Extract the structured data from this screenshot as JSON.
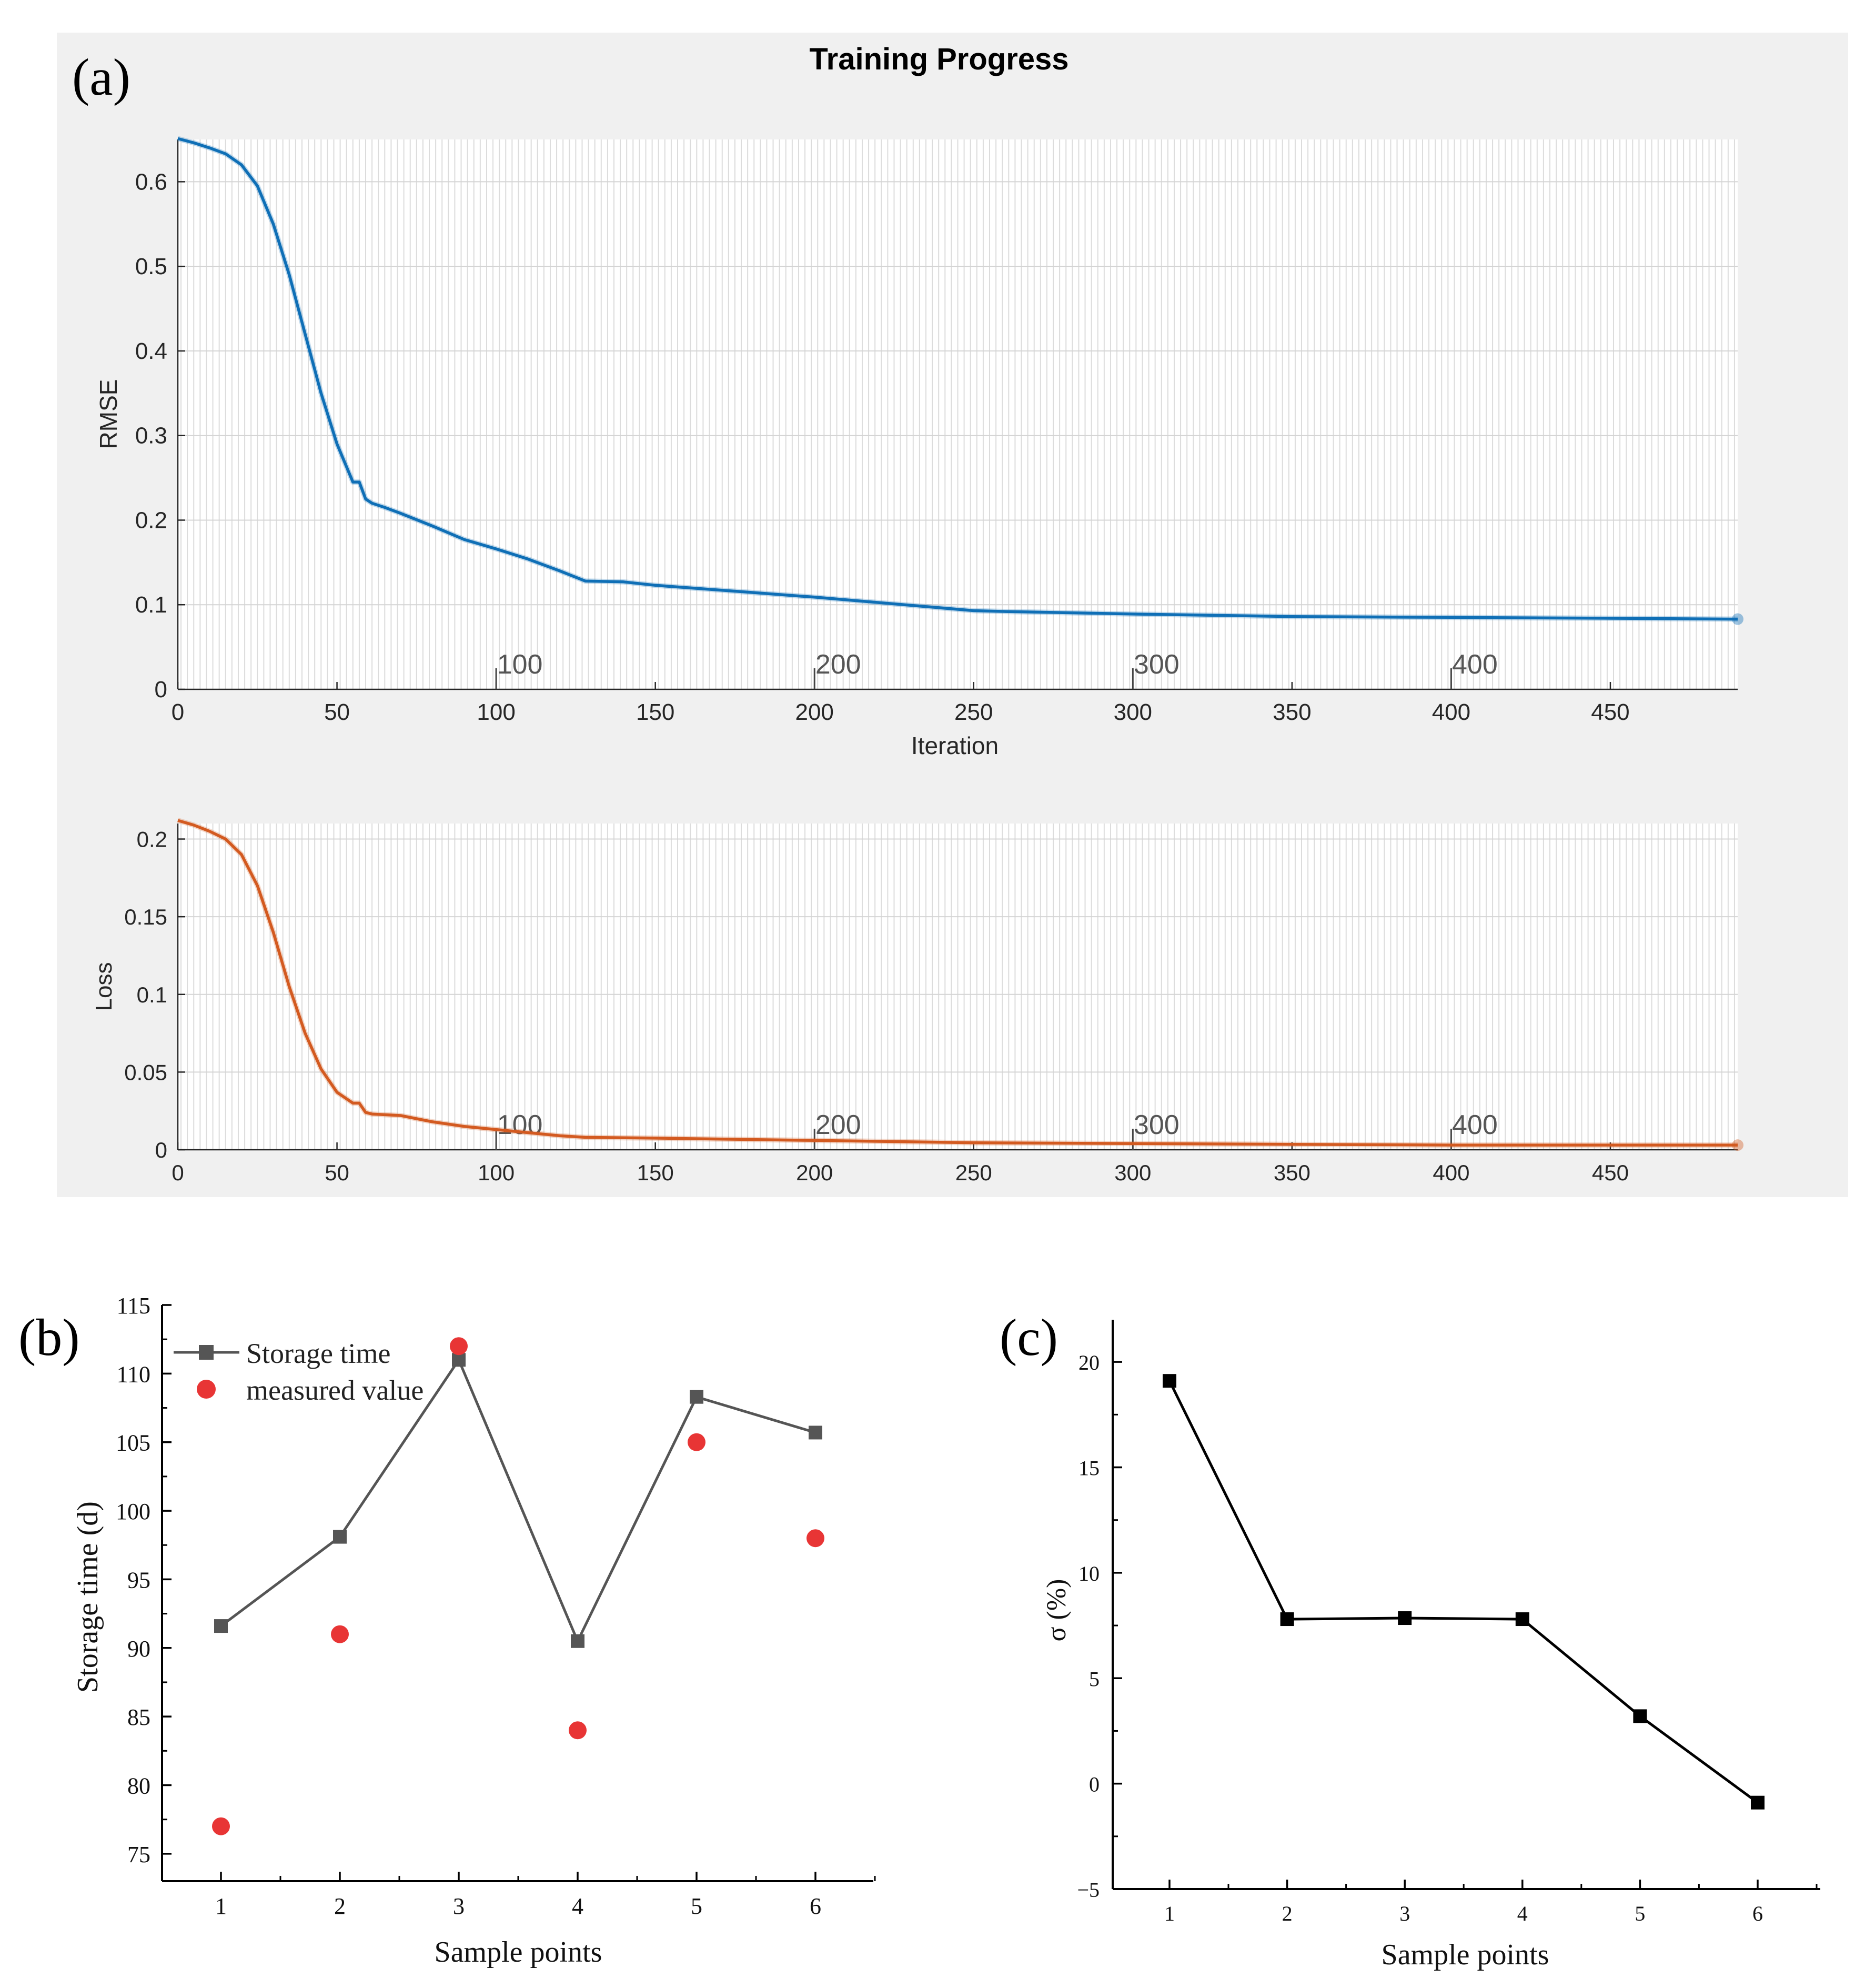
{
  "panel_labels": {
    "a": "(a)",
    "b": "(b)",
    "c": "(c)"
  },
  "figure_title": "Training Progress",
  "chart_data": [
    {
      "id": "rmse",
      "type": "line",
      "title": "Training Progress",
      "xlabel": "Iteration",
      "ylabel": "RMSE",
      "xlim": [
        0,
        490
      ],
      "ylim": [
        0,
        0.65
      ],
      "xticks": [
        0,
        50,
        100,
        150,
        200,
        250,
        300,
        350,
        400,
        450
      ],
      "xtick_labels": [
        "0",
        "50",
        "100",
        "150",
        "200",
        "250",
        "300",
        "350",
        "400",
        "450"
      ],
      "yticks": [
        0,
        0.1,
        0.2,
        0.3,
        0.4,
        0.5,
        0.6
      ],
      "ytick_labels": [
        "0",
        "0.1",
        "0.2",
        "0.3",
        "0.4",
        "0.5",
        "0.6"
      ],
      "epoch_markers": [
        100,
        200,
        300,
        400
      ],
      "epoch_labels": [
        "100",
        "200",
        "300",
        "400"
      ],
      "grid": true,
      "color": "#0f6fb6",
      "series": [
        {
          "name": "RMSE",
          "x": [
            0,
            5,
            10,
            15,
            20,
            25,
            30,
            35,
            40,
            45,
            50,
            55,
            57,
            59,
            61,
            65,
            70,
            80,
            90,
            100,
            110,
            120,
            128,
            140,
            150,
            200,
            250,
            260,
            300,
            350,
            400,
            450,
            490
          ],
          "y": [
            0.651,
            0.646,
            0.64,
            0.633,
            0.62,
            0.595,
            0.55,
            0.49,
            0.42,
            0.35,
            0.29,
            0.245,
            0.245,
            0.225,
            0.22,
            0.215,
            0.208,
            0.193,
            0.177,
            0.166,
            0.154,
            0.14,
            0.128,
            0.127,
            0.123,
            0.109,
            0.093,
            0.092,
            0.089,
            0.086,
            0.085,
            0.084,
            0.083
          ]
        }
      ]
    },
    {
      "id": "loss",
      "type": "line",
      "title": "",
      "xlabel": "",
      "ylabel": "Loss",
      "xlim": [
        0,
        490
      ],
      "ylim": [
        0,
        0.21
      ],
      "xticks": [
        0,
        50,
        100,
        150,
        200,
        250,
        300,
        350,
        400,
        450
      ],
      "xtick_labels": [
        "0",
        "50",
        "100",
        "150",
        "200",
        "250",
        "300",
        "350",
        "400",
        "450"
      ],
      "yticks": [
        0,
        0.05,
        0.1,
        0.15,
        0.2
      ],
      "ytick_labels": [
        "0",
        "0.05",
        "0.1",
        "0.15",
        "0.2"
      ],
      "epoch_markers": [
        100,
        200,
        300,
        400
      ],
      "epoch_labels": [
        "100",
        "200",
        "300",
        "400"
      ],
      "grid": true,
      "color": "#d35a20",
      "series": [
        {
          "name": "Loss",
          "x": [
            0,
            5,
            10,
            15,
            20,
            25,
            30,
            35,
            40,
            45,
            50,
            55,
            57,
            59,
            61,
            70,
            80,
            90,
            100,
            110,
            120,
            128,
            150,
            200,
            250,
            300,
            350,
            400,
            450,
            490
          ],
          "y": [
            0.212,
            0.209,
            0.205,
            0.2,
            0.19,
            0.17,
            0.14,
            0.105,
            0.075,
            0.052,
            0.037,
            0.03,
            0.03,
            0.024,
            0.023,
            0.022,
            0.018,
            0.015,
            0.013,
            0.011,
            0.009,
            0.008,
            0.0075,
            0.006,
            0.0045,
            0.004,
            0.0035,
            0.003,
            0.003,
            0.003
          ]
        }
      ]
    },
    {
      "id": "storage",
      "type": "scatter-line",
      "title": "",
      "xlabel": "Sample points",
      "ylabel": "Storage time (d)",
      "xlim": [
        0.5,
        6.5
      ],
      "ylim": [
        73,
        115
      ],
      "categories": [
        "1",
        "2",
        "3",
        "4",
        "5",
        "6"
      ],
      "yticks": [
        75,
        80,
        85,
        90,
        95,
        100,
        105,
        110,
        115
      ],
      "ytick_labels": [
        "75",
        "80",
        "85",
        "90",
        "95",
        "100",
        "105",
        "110",
        "115"
      ],
      "legend_position": "top-left",
      "series": [
        {
          "name": "Storage time",
          "marker": "square",
          "color": "#555555",
          "x": [
            1,
            2,
            3,
            4,
            5,
            6
          ],
          "values": [
            91.6,
            98.1,
            111.0,
            90.5,
            108.3,
            105.7
          ]
        },
        {
          "name": "measured value",
          "marker": "circle",
          "color": "#e83535",
          "x": [
            1,
            2,
            3,
            4,
            5,
            6
          ],
          "values": [
            77,
            91,
            112,
            84,
            105,
            98
          ]
        }
      ]
    },
    {
      "id": "sigma",
      "type": "line",
      "title": "",
      "xlabel": "Sample points",
      "ylabel": "σ (%)",
      "xlim": [
        0.5,
        6.5
      ],
      "ylim": [
        -5,
        22
      ],
      "categories": [
        "1",
        "2",
        "3",
        "4",
        "5",
        "6"
      ],
      "yticks": [
        -5,
        0,
        5,
        10,
        15,
        20
      ],
      "ytick_labels": [
        "−5",
        "0",
        "5",
        "10",
        "15",
        "20"
      ],
      "series": [
        {
          "name": "σ",
          "marker": "square",
          "color": "#000000",
          "x": [
            1,
            2,
            3,
            4,
            5,
            6
          ],
          "values": [
            19.1,
            7.8,
            7.85,
            7.8,
            3.2,
            -0.9
          ]
        }
      ]
    }
  ]
}
